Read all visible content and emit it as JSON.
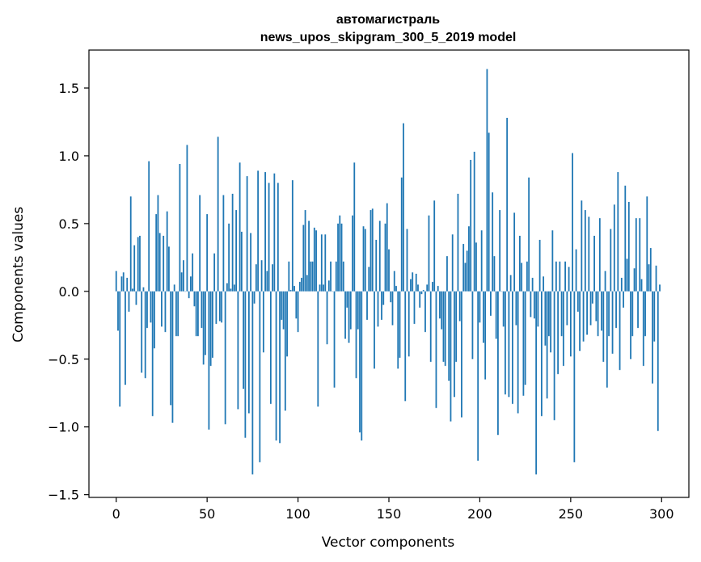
{
  "chart_data": {
    "type": "bar",
    "title": [
      "автомагистраль",
      "news_upos_skipgram_300_5_2019 model"
    ],
    "xlabel": "Vector components",
    "ylabel": "Components values",
    "xlim": [
      -15,
      315
    ],
    "ylim": [
      -1.52,
      1.78
    ],
    "xticks": [
      0,
      50,
      100,
      150,
      200,
      250,
      300
    ],
    "yticks": [
      -1.5,
      -1.0,
      -0.5,
      0.0,
      0.5,
      1.0,
      1.5
    ],
    "ytick_labels": [
      "−1.5",
      "−1.0",
      "−0.5",
      "0.0",
      "0.5",
      "1.0",
      "1.5"
    ],
    "bar_color": "#1f77b4",
    "grid": false,
    "x_start": 0,
    "values": [
      0.15,
      -0.29,
      -0.85,
      0.11,
      0.14,
      -0.69,
      0.1,
      -0.15,
      0.7,
      0.02,
      0.34,
      -0.1,
      0.4,
      0.41,
      -0.6,
      0.03,
      -0.64,
      -0.27,
      0.96,
      -0.23,
      -0.92,
      -0.42,
      0.57,
      0.71,
      0.43,
      -0.26,
      0.41,
      -0.3,
      0.59,
      0.33,
      -0.84,
      -0.97,
      0.05,
      -0.33,
      -0.33,
      0.94,
      0.14,
      0.23,
      0.0,
      1.08,
      -0.05,
      0.11,
      0.28,
      -0.11,
      -0.33,
      -0.33,
      0.71,
      -0.27,
      -0.54,
      -0.47,
      0.57,
      -1.02,
      -0.55,
      -0.49,
      0.28,
      -0.24,
      1.14,
      -0.22,
      -0.23,
      0.71,
      -0.98,
      0.06,
      0.5,
      0.02,
      0.72,
      0.05,
      0.6,
      -0.87,
      0.95,
      0.44,
      -0.72,
      -1.08,
      0.85,
      -0.9,
      0.43,
      -1.35,
      -0.09,
      0.2,
      0.89,
      -1.26,
      0.23,
      -0.45,
      0.88,
      0.15,
      0.8,
      -0.83,
      0.2,
      0.87,
      -1.1,
      0.8,
      -1.12,
      -0.21,
      -0.28,
      -0.88,
      -0.48,
      0.22,
      0.01,
      0.82,
      0.04,
      -0.2,
      -0.3,
      0.07,
      0.1,
      0.49,
      0.6,
      0.12,
      0.52,
      0.22,
      0.22,
      0.47,
      0.45,
      -0.85,
      0.05,
      0.42,
      0.05,
      0.42,
      -0.39,
      0.08,
      0.22,
      0.0,
      -0.71,
      0.22,
      0.5,
      0.56,
      0.5,
      0.22,
      -0.35,
      -0.12,
      -0.38,
      -0.28,
      0.56,
      0.95,
      -0.64,
      -0.28,
      -1.04,
      -1.1,
      0.48,
      0.46,
      -0.21,
      0.18,
      0.6,
      0.61,
      -0.57,
      0.38,
      -0.26,
      0.52,
      -0.21,
      -0.1,
      0.5,
      0.65,
      0.31,
      -0.08,
      -0.25,
      0.15,
      0.04,
      -0.57,
      -0.49,
      0.84,
      1.24,
      -0.81,
      0.46,
      -0.48,
      0.09,
      0.14,
      -0.24,
      0.13,
      0.05,
      -0.12,
      -0.02,
      0.01,
      -0.3,
      0.05,
      0.56,
      -0.52,
      0.07,
      0.67,
      -0.86,
      0.04,
      -0.2,
      -0.28,
      -0.52,
      -0.55,
      0.26,
      -0.66,
      -0.96,
      0.42,
      -0.78,
      -0.52,
      0.72,
      -0.22,
      -0.93,
      0.35,
      0.21,
      0.3,
      0.48,
      0.97,
      -0.5,
      1.03,
      0.36,
      -1.25,
      -0.23,
      0.45,
      -0.38,
      -0.65,
      1.64,
      1.17,
      -0.18,
      0.73,
      0.26,
      -0.35,
      -1.06,
      0.6,
      0.0,
      -0.26,
      -0.76,
      1.28,
      -0.78,
      0.12,
      -0.83,
      0.58,
      -0.25,
      -0.9,
      0.41,
      0.21,
      -0.77,
      -0.69,
      0.22,
      0.84,
      -0.19,
      0.1,
      -0.2,
      -1.35,
      -0.26,
      0.38,
      -0.92,
      0.11,
      -0.4,
      -0.79,
      -0.33,
      -0.45,
      0.45,
      -0.95,
      0.22,
      -0.61,
      0.22,
      -0.33,
      -0.55,
      0.22,
      -0.25,
      0.18,
      -0.48,
      1.02,
      -1.26,
      0.31,
      -0.15,
      -0.44,
      0.67,
      -0.37,
      0.6,
      -0.32,
      0.55,
      -0.25,
      -0.09,
      0.41,
      -0.22,
      -0.33,
      0.54,
      -0.29,
      -0.52,
      0.15,
      -0.71,
      -0.33,
      0.46,
      -0.46,
      0.64,
      -0.27,
      0.88,
      -0.58,
      0.1,
      -0.12,
      0.78,
      0.24,
      0.66,
      -0.5,
      -0.33,
      0.17,
      0.54,
      -0.27,
      0.54,
      0.09,
      -0.55,
      -0.33,
      0.7,
      0.2,
      0.32,
      -0.68,
      -0.37,
      0.19,
      -1.03,
      0.05
    ]
  }
}
